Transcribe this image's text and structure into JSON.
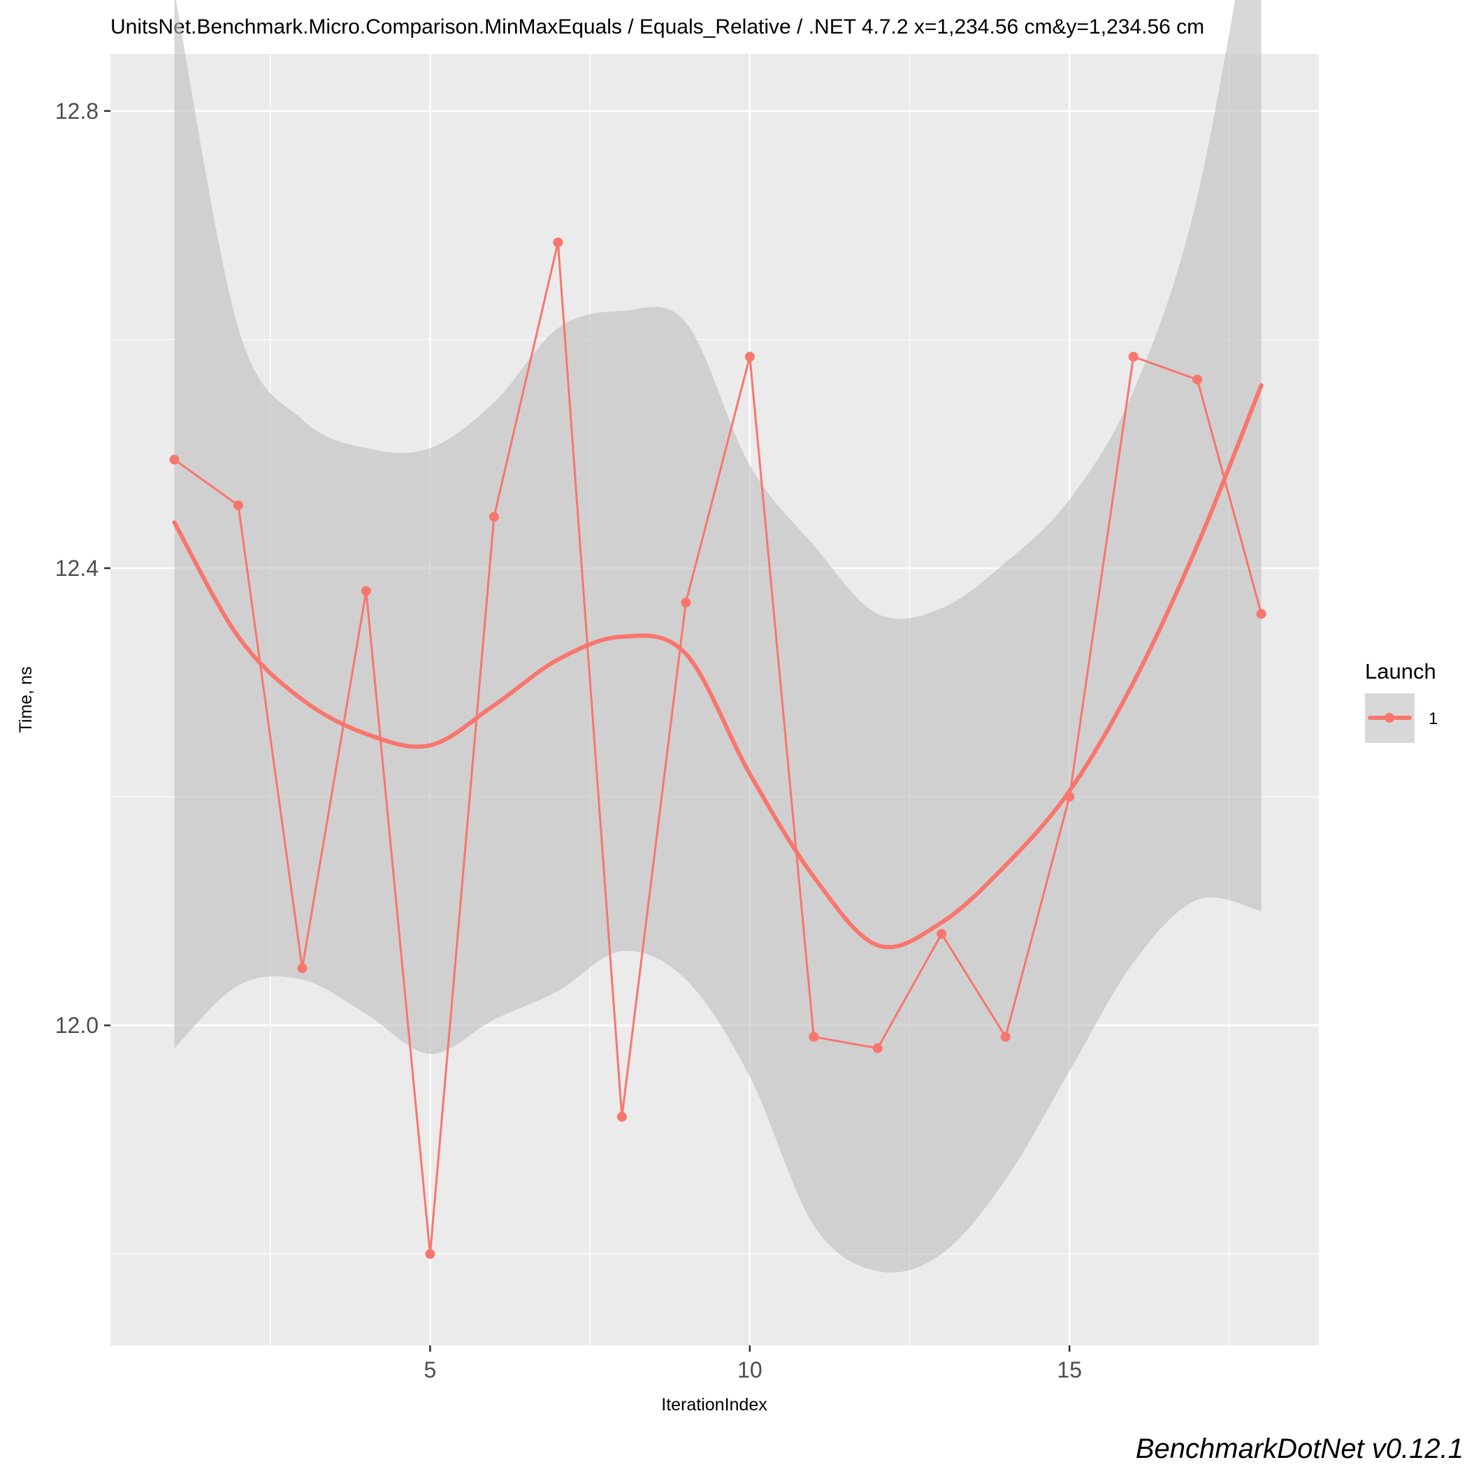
{
  "chart_data": {
    "type": "line",
    "title": "UnitsNet.Benchmark.Micro.Comparison.MinMaxEquals / Equals_Relative / .NET 4.7.2 x=1,234.56 cm&y=1,234.56 cm",
    "xlabel": "IterationIndex",
    "ylabel": "Time, ns",
    "xlim": [
      0.0,
      18.9
    ],
    "ylim": [
      11.72,
      12.85
    ],
    "x_ticks": [
      5,
      10,
      15
    ],
    "x_tick_labels": [
      "5",
      "10",
      "15"
    ],
    "y_ticks": [
      12.0,
      12.4,
      12.8
    ],
    "y_tick_labels": [
      "12.0",
      "12.4",
      "12.8"
    ],
    "grid": true,
    "legend": {
      "title": "Launch",
      "position": "right",
      "entries": [
        "1"
      ]
    },
    "series": [
      {
        "name": "1",
        "color": "#f8766d",
        "x": [
          1,
          2,
          3,
          4,
          5,
          6,
          7,
          8,
          9,
          10,
          11,
          12,
          13,
          14,
          15,
          16,
          17,
          18
        ],
        "values": [
          12.495,
          12.455,
          12.05,
          12.38,
          11.8,
          12.445,
          12.685,
          11.92,
          12.37,
          12.585,
          11.99,
          11.98,
          12.08,
          11.99,
          12.2,
          12.585,
          12.565,
          12.36
        ]
      }
    ],
    "smooth": {
      "method": "loess",
      "color": "#f8766d",
      "band_color": "#bebebe",
      "x": [
        1,
        2,
        3,
        4,
        5,
        6,
        7,
        8,
        9,
        10,
        11,
        12,
        13,
        14,
        15,
        16,
        17,
        18
      ],
      "fit": [
        12.44,
        12.34,
        12.285,
        12.255,
        12.245,
        12.28,
        12.32,
        12.34,
        12.325,
        12.22,
        12.13,
        12.07,
        12.09,
        12.14,
        12.205,
        12.3,
        12.42,
        12.56
      ],
      "lower": [
        11.98,
        12.035,
        12.04,
        12.01,
        11.975,
        12.005,
        12.03,
        12.065,
        12.04,
        11.955,
        11.825,
        11.785,
        11.8,
        11.865,
        11.96,
        12.055,
        12.11,
        12.1
      ],
      "upper": [
        12.905,
        12.61,
        12.53,
        12.505,
        12.505,
        12.545,
        12.61,
        12.625,
        12.615,
        12.49,
        12.42,
        12.36,
        12.365,
        12.405,
        12.46,
        12.555,
        12.725,
        13.03
      ]
    }
  },
  "caption": "BenchmarkDotNet v0.12.1"
}
